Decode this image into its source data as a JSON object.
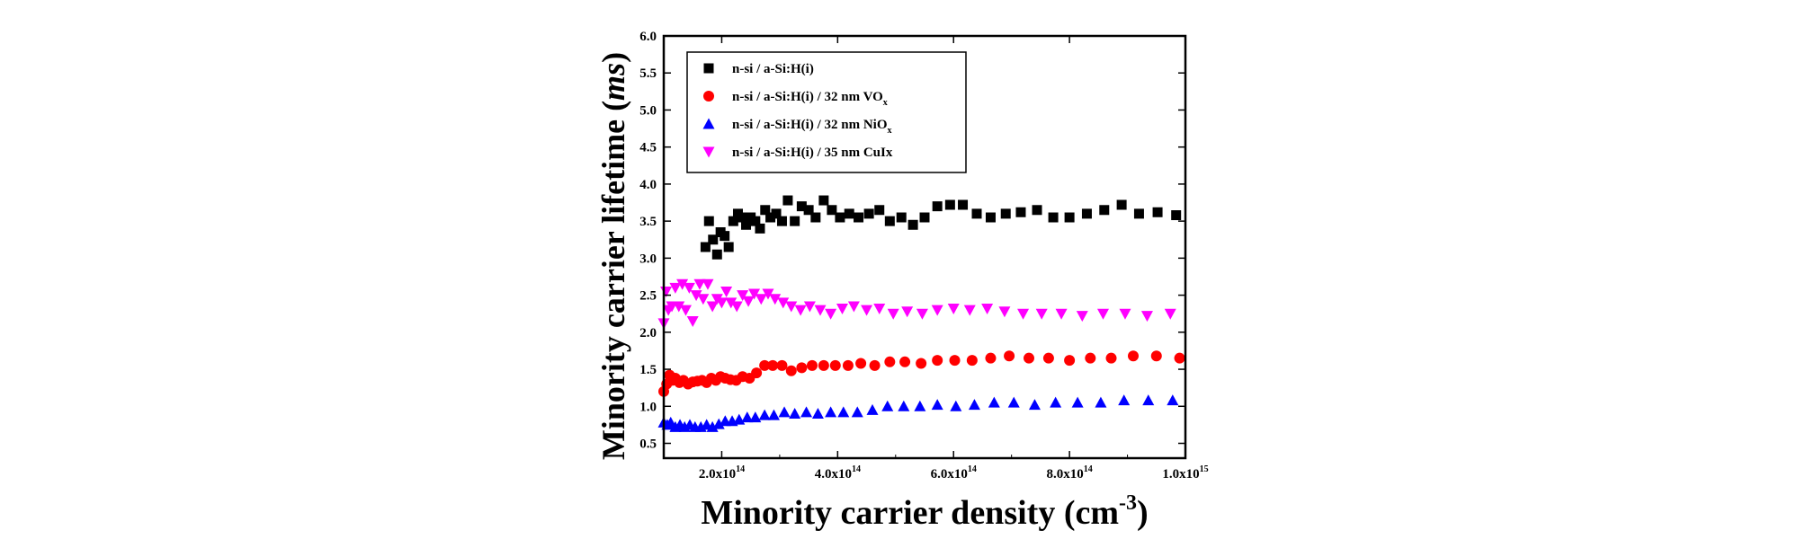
{
  "chart_data": {
    "type": "scatter",
    "title": "",
    "xlabel": {
      "main": "Minority carrier density (cm",
      "sup": "-3",
      "end": ")"
    },
    "ylabel": {
      "main": "Minority carrier lifetime (",
      "unit": "ms",
      "end": ")"
    },
    "xlim": [
      100000000000000,
      1000000000000000
    ],
    "ylim": [
      0.3,
      6.0
    ],
    "grid": false,
    "legend_position": "top-left",
    "x_ticks": [
      {
        "value": 200000000000000,
        "mant": "2.0x10",
        "exp": "14"
      },
      {
        "value": 400000000000000,
        "mant": "4.0x10",
        "exp": "14"
      },
      {
        "value": 600000000000000,
        "mant": "6.0x10",
        "exp": "14"
      },
      {
        "value": 800000000000000,
        "mant": "8.0x10",
        "exp": "14"
      },
      {
        "value": 1000000000000000,
        "mant": "1.0x10",
        "exp": "15"
      }
    ],
    "y_ticks": [
      "0.5",
      "1.0",
      "1.5",
      "2.0",
      "2.5",
      "3.0",
      "3.5",
      "4.0",
      "4.5",
      "5.0",
      "5.5",
      "6.0"
    ],
    "series": [
      {
        "name": "n-si / a-Si:H(i)",
        "marker": "square",
        "color": "#000000",
        "points": [
          [
            1.72,
            3.15
          ],
          [
            1.78,
            3.5
          ],
          [
            1.85,
            3.25
          ],
          [
            1.92,
            3.05
          ],
          [
            1.98,
            3.35
          ],
          [
            2.05,
            3.3
          ],
          [
            2.12,
            3.15
          ],
          [
            2.2,
            3.5
          ],
          [
            2.28,
            3.6
          ],
          [
            2.35,
            3.55
          ],
          [
            2.42,
            3.45
          ],
          [
            2.5,
            3.55
          ],
          [
            2.58,
            3.5
          ],
          [
            2.66,
            3.4
          ],
          [
            2.75,
            3.65
          ],
          [
            2.84,
            3.55
          ],
          [
            2.94,
            3.6
          ],
          [
            3.04,
            3.5
          ],
          [
            3.14,
            3.78
          ],
          [
            3.26,
            3.5
          ],
          [
            3.38,
            3.7
          ],
          [
            3.5,
            3.65
          ],
          [
            3.62,
            3.55
          ],
          [
            3.76,
            3.78
          ],
          [
            3.9,
            3.65
          ],
          [
            4.04,
            3.55
          ],
          [
            4.2,
            3.6
          ],
          [
            4.36,
            3.55
          ],
          [
            4.54,
            3.6
          ],
          [
            4.72,
            3.65
          ],
          [
            4.9,
            3.5
          ],
          [
            5.1,
            3.55
          ],
          [
            5.3,
            3.45
          ],
          [
            5.5,
            3.55
          ],
          [
            5.72,
            3.7
          ],
          [
            5.94,
            3.72
          ],
          [
            6.16,
            3.72
          ],
          [
            6.4,
            3.6
          ],
          [
            6.64,
            3.55
          ],
          [
            6.9,
            3.6
          ],
          [
            7.16,
            3.62
          ],
          [
            7.44,
            3.65
          ],
          [
            7.72,
            3.55
          ],
          [
            8.0,
            3.55
          ],
          [
            8.3,
            3.6
          ],
          [
            8.6,
            3.65
          ],
          [
            8.9,
            3.72
          ],
          [
            9.2,
            3.6
          ],
          [
            9.52,
            3.62
          ],
          [
            9.84,
            3.58
          ]
        ]
      },
      {
        "name": "n-si / a-Si:H(i) / 32 nm VO",
        "name_sub": "x",
        "marker": "circle",
        "color": "#ff0000",
        "points": [
          [
            1.0,
            1.2
          ],
          [
            1.05,
            1.3
          ],
          [
            1.1,
            1.42
          ],
          [
            1.15,
            1.35
          ],
          [
            1.2,
            1.38
          ],
          [
            1.27,
            1.32
          ],
          [
            1.34,
            1.35
          ],
          [
            1.42,
            1.3
          ],
          [
            1.5,
            1.33
          ],
          [
            1.58,
            1.34
          ],
          [
            1.66,
            1.35
          ],
          [
            1.74,
            1.32
          ],
          [
            1.82,
            1.38
          ],
          [
            1.9,
            1.35
          ],
          [
            1.98,
            1.4
          ],
          [
            2.06,
            1.38
          ],
          [
            2.15,
            1.36
          ],
          [
            2.25,
            1.35
          ],
          [
            2.36,
            1.4
          ],
          [
            2.48,
            1.38
          ],
          [
            2.6,
            1.45
          ],
          [
            2.74,
            1.55
          ],
          [
            2.88,
            1.55
          ],
          [
            3.04,
            1.55
          ],
          [
            3.2,
            1.48
          ],
          [
            3.38,
            1.52
          ],
          [
            3.56,
            1.55
          ],
          [
            3.76,
            1.55
          ],
          [
            3.96,
            1.55
          ],
          [
            4.18,
            1.55
          ],
          [
            4.4,
            1.58
          ],
          [
            4.64,
            1.55
          ],
          [
            4.9,
            1.6
          ],
          [
            5.16,
            1.6
          ],
          [
            5.44,
            1.58
          ],
          [
            5.72,
            1.62
          ],
          [
            6.02,
            1.62
          ],
          [
            6.32,
            1.62
          ],
          [
            6.64,
            1.65
          ],
          [
            6.96,
            1.68
          ],
          [
            7.3,
            1.65
          ],
          [
            7.64,
            1.65
          ],
          [
            8.0,
            1.62
          ],
          [
            8.36,
            1.65
          ],
          [
            8.72,
            1.65
          ],
          [
            9.1,
            1.68
          ],
          [
            9.5,
            1.68
          ],
          [
            9.9,
            1.65
          ]
        ]
      },
      {
        "name": "n-si / a-Si:H(i) / 32 nm NiO",
        "name_sub": "x",
        "marker": "triangle-up",
        "color": "#0000ff",
        "points": [
          [
            1.0,
            0.78
          ],
          [
            1.06,
            0.75
          ],
          [
            1.12,
            0.78
          ],
          [
            1.2,
            0.72
          ],
          [
            1.28,
            0.75
          ],
          [
            1.36,
            0.72
          ],
          [
            1.45,
            0.75
          ],
          [
            1.54,
            0.72
          ],
          [
            1.64,
            0.72
          ],
          [
            1.74,
            0.75
          ],
          [
            1.84,
            0.72
          ],
          [
            1.95,
            0.76
          ],
          [
            2.06,
            0.8
          ],
          [
            2.18,
            0.8
          ],
          [
            2.3,
            0.82
          ],
          [
            2.44,
            0.85
          ],
          [
            2.58,
            0.85
          ],
          [
            2.74,
            0.88
          ],
          [
            2.9,
            0.88
          ],
          [
            3.08,
            0.92
          ],
          [
            3.26,
            0.9
          ],
          [
            3.46,
            0.92
          ],
          [
            3.66,
            0.9
          ],
          [
            3.88,
            0.92
          ],
          [
            4.1,
            0.92
          ],
          [
            4.34,
            0.92
          ],
          [
            4.6,
            0.95
          ],
          [
            4.86,
            1.0
          ],
          [
            5.14,
            1.0
          ],
          [
            5.42,
            1.0
          ],
          [
            5.72,
            1.02
          ],
          [
            6.04,
            1.0
          ],
          [
            6.36,
            1.02
          ],
          [
            6.7,
            1.05
          ],
          [
            7.04,
            1.05
          ],
          [
            7.4,
            1.02
          ],
          [
            7.76,
            1.05
          ],
          [
            8.14,
            1.05
          ],
          [
            8.54,
            1.05
          ],
          [
            8.94,
            1.08
          ],
          [
            9.36,
            1.08
          ],
          [
            9.78,
            1.08
          ]
        ]
      },
      {
        "name": "n-si / a-Si:H(i) / 35 nm CuIx",
        "marker": "triangle-down",
        "color": "#ff00ff",
        "points": [
          [
            1.0,
            2.12
          ],
          [
            1.04,
            2.55
          ],
          [
            1.08,
            2.3
          ],
          [
            1.14,
            2.35
          ],
          [
            1.2,
            2.6
          ],
          [
            1.26,
            2.35
          ],
          [
            1.32,
            2.65
          ],
          [
            1.38,
            2.3
          ],
          [
            1.44,
            2.6
          ],
          [
            1.5,
            2.15
          ],
          [
            1.56,
            2.5
          ],
          [
            1.62,
            2.65
          ],
          [
            1.68,
            2.45
          ],
          [
            1.76,
            2.65
          ],
          [
            1.84,
            2.35
          ],
          [
            1.92,
            2.45
          ],
          [
            2.0,
            2.4
          ],
          [
            2.08,
            2.55
          ],
          [
            2.16,
            2.4
          ],
          [
            2.26,
            2.35
          ],
          [
            2.36,
            2.5
          ],
          [
            2.46,
            2.42
          ],
          [
            2.56,
            2.52
          ],
          [
            2.68,
            2.45
          ],
          [
            2.8,
            2.52
          ],
          [
            2.92,
            2.45
          ],
          [
            3.06,
            2.4
          ],
          [
            3.2,
            2.35
          ],
          [
            3.36,
            2.3
          ],
          [
            3.52,
            2.35
          ],
          [
            3.7,
            2.3
          ],
          [
            3.88,
            2.25
          ],
          [
            4.08,
            2.32
          ],
          [
            4.28,
            2.35
          ],
          [
            4.5,
            2.3
          ],
          [
            4.72,
            2.32
          ],
          [
            4.96,
            2.25
          ],
          [
            5.2,
            2.28
          ],
          [
            5.46,
            2.25
          ],
          [
            5.72,
            2.3
          ],
          [
            6.0,
            2.32
          ],
          [
            6.28,
            2.3
          ],
          [
            6.58,
            2.32
          ],
          [
            6.88,
            2.28
          ],
          [
            7.2,
            2.25
          ],
          [
            7.52,
            2.25
          ],
          [
            7.86,
            2.25
          ],
          [
            8.22,
            2.22
          ],
          [
            8.58,
            2.25
          ],
          [
            8.96,
            2.25
          ],
          [
            9.34,
            2.22
          ],
          [
            9.74,
            2.25
          ]
        ]
      }
    ],
    "points_scale_note": "x values are in units of 1e14 cm^-3"
  }
}
